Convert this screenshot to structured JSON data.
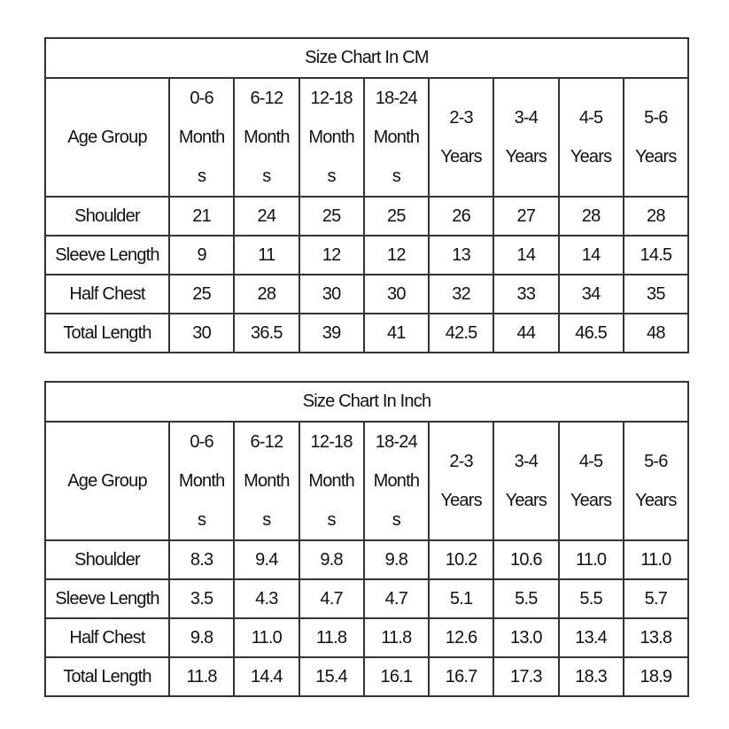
{
  "tables": [
    {
      "title": "Size Chart In CM",
      "header": [
        "Age Group",
        "0-6 Months",
        "6-12 Months",
        "12-18 Months",
        "18-24 Months",
        "2-3 Years",
        "3-4 Years",
        "4-5 Years",
        "5-6 Years"
      ],
      "rows": [
        [
          "Shoulder",
          "21",
          "24",
          "25",
          "25",
          "26",
          "27",
          "28",
          "28"
        ],
        [
          "Sleeve Length",
          "9",
          "11",
          "12",
          "12",
          "13",
          "14",
          "14",
          "14.5"
        ],
        [
          "Half Chest",
          "25",
          "28",
          "30",
          "30",
          "32",
          "33",
          "34",
          "35"
        ],
        [
          "Total Length",
          "30",
          "36.5",
          "39",
          "41",
          "42.5",
          "44",
          "46.5",
          "48"
        ]
      ]
    },
    {
      "title": "Size Chart In Inch",
      "header": [
        "Age Group",
        "0-6 Months",
        "6-12 Months",
        "12-18 Months",
        "18-24 Months",
        "2-3 Years",
        "3-4 Years",
        "4-5 Years",
        "5-6 Years"
      ],
      "rows": [
        [
          "Shoulder",
          "8.3",
          "9.4",
          "9.8",
          "9.8",
          "10.2",
          "10.6",
          "11.0",
          "11.0"
        ],
        [
          "Sleeve Length",
          "3.5",
          "4.3",
          "4.7",
          "4.7",
          "5.1",
          "5.5",
          "5.5",
          "5.7"
        ],
        [
          "Half Chest",
          "9.8",
          "11.0",
          "11.8",
          "11.8",
          "12.6",
          "13.0",
          "13.4",
          "13.8"
        ],
        [
          "Total Length",
          "11.8",
          "14.4",
          "15.4",
          "16.1",
          "16.7",
          "17.3",
          "18.3",
          "18.9"
        ]
      ]
    }
  ]
}
